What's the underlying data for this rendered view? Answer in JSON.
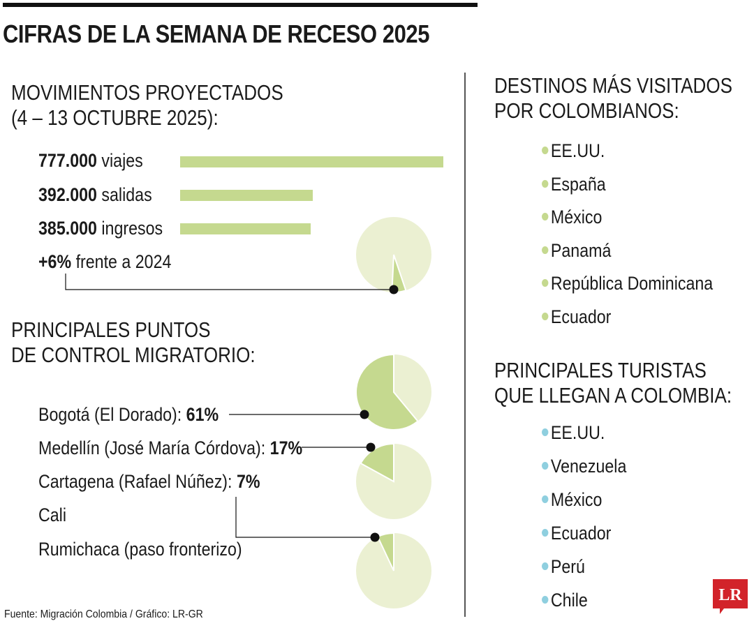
{
  "title": "CIFRAS DE LA SEMANA DE RECESO 2025",
  "movimientos": {
    "heading_1": "MOVIMIENTOS PROYECTADOS",
    "heading_2": "(4 – 13 OCTUBRE 2025):",
    "rows": [
      {
        "value": "777.000",
        "label": " viajes"
      },
      {
        "value": "392.000",
        "label": " salidas"
      },
      {
        "value": "385.000",
        "label": " ingresos"
      }
    ],
    "growth_value": "+6%",
    "growth_label": " frente a 2024"
  },
  "puntos": {
    "heading_1": "PRINCIPALES PUNTOS",
    "heading_2": "DE CONTROL MIGRATORIO:",
    "rows": [
      {
        "name": "Bogotá (El Dorado): ",
        "pct": "61%"
      },
      {
        "name": "Medellín (José María Córdova): ",
        "pct": "17%"
      },
      {
        "name": "Cartagena (Rafael Núñez): ",
        "pct": "7%"
      },
      {
        "name": "Cali",
        "pct": ""
      },
      {
        "name": "Rumichaca (paso fronterizo)",
        "pct": ""
      }
    ]
  },
  "destinos": {
    "heading_1": "DESTINOS MÁS VISITADOS",
    "heading_2": "POR COLOMBIANOS:",
    "items": [
      "EE.UU.",
      "España",
      "México",
      "Panamá",
      "República Dominicana",
      "Ecuador"
    ],
    "dot_color": "#c5d98f"
  },
  "turistas": {
    "heading_1": "PRINCIPALES TURISTAS",
    "heading_2": "QUE LLEGAN A COLOMBIA:",
    "items": [
      "EE.UU.",
      "Venezuela",
      "México",
      "Ecuador",
      "Perú",
      "Chile"
    ],
    "dot_color": "#8fcfdf"
  },
  "source": "Fuente: Migración Colombia / Gráfico: LR-GR",
  "logo_text": "LR",
  "colors": {
    "bar": "#c5d98f",
    "pie_highlight": "#c5d98f",
    "pie_base": "#ebf0d2",
    "logo": "#d2232a"
  },
  "chart_data": [
    {
      "type": "bar",
      "categories": [
        "viajes",
        "salidas",
        "ingresos"
      ],
      "values": [
        777000,
        392000,
        385000
      ]
    },
    {
      "type": "pie",
      "labels": [
        "+6% frente a 2024"
      ],
      "values": [
        6
      ]
    },
    {
      "type": "pie",
      "labels": [
        "Bogotá (El Dorado)"
      ],
      "values": [
        61
      ]
    },
    {
      "type": "pie",
      "labels": [
        "Medellín (José María Córdova)"
      ],
      "values": [
        17
      ]
    },
    {
      "type": "pie",
      "labels": [
        "Cartagena (Rafael Núñez)"
      ],
      "values": [
        7
      ]
    }
  ]
}
